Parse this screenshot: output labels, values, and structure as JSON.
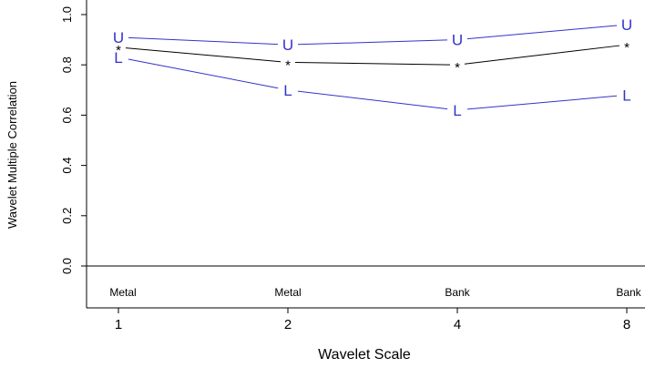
{
  "chart_data": {
    "type": "line",
    "xlabel": "Wavelet Scale",
    "ylabel": "Wavelet Multiple Correlation",
    "x": [
      "1",
      "2",
      "4",
      "8"
    ],
    "point_labels": [
      "Metal",
      "Metal",
      "Bank",
      "Bank"
    ],
    "ylim": [
      -0.12,
      1.02
    ],
    "yticks": [
      "0.0",
      "0.2",
      "0.4",
      "0.6",
      "0.8",
      "1.0"
    ],
    "grid": false,
    "series": [
      {
        "marker": "U",
        "color": "#3333cc",
        "values": [
          0.91,
          0.88,
          0.9,
          0.96
        ]
      },
      {
        "marker": "*",
        "color": "#000000",
        "values": [
          0.87,
          0.81,
          0.8,
          0.88
        ]
      },
      {
        "marker": "L",
        "color": "#3333cc",
        "values": [
          0.83,
          0.7,
          0.62,
          0.68
        ]
      }
    ]
  }
}
